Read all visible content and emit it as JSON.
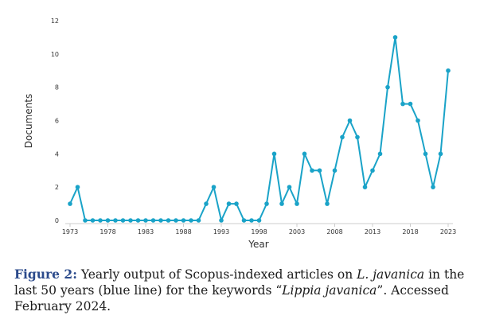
{
  "chart_data": {
    "type": "line",
    "xlabel": "Year",
    "ylabel": "Documents",
    "x": [
      1973,
      1974,
      1975,
      1976,
      1977,
      1978,
      1979,
      1980,
      1981,
      1982,
      1983,
      1984,
      1985,
      1986,
      1987,
      1988,
      1989,
      1990,
      1991,
      1992,
      1993,
      1994,
      1995,
      1996,
      1997,
      1998,
      1999,
      2000,
      2001,
      2002,
      2003,
      2004,
      2005,
      2006,
      2007,
      2008,
      2009,
      2010,
      2011,
      2012,
      2013,
      2014,
      2015,
      2016,
      2017,
      2018,
      2019,
      2020,
      2021,
      2022,
      2023
    ],
    "series": [
      {
        "values": [
          1,
          2,
          0,
          0,
          0,
          0,
          0,
          0,
          0,
          0,
          0,
          0,
          0,
          0,
          0,
          0,
          0,
          0,
          1,
          2,
          0,
          1,
          1,
          0,
          0,
          0,
          1,
          4,
          1,
          2,
          1,
          4,
          3,
          3,
          1,
          3,
          5,
          6,
          5,
          2,
          3,
          4,
          8,
          11,
          7,
          7,
          6,
          4,
          2,
          4,
          9
        ]
      }
    ],
    "xticks": [
      1973,
      1978,
      1983,
      1988,
      1993,
      1998,
      2003,
      2008,
      2013,
      2018,
      2023
    ],
    "yticks": [
      0,
      2,
      4,
      6,
      8,
      10,
      12
    ],
    "xlim": [
      1973,
      2023
    ],
    "ylim": [
      0,
      12
    ],
    "grid": false,
    "line_color": "#1aa3c8"
  },
  "caption": {
    "label": "Figure 2:",
    "text_1": " Yearly output of Scopus-indexed articles on ",
    "italic_1": "L. javanica",
    "text_2": " in the last 50 years (blue line) for the keywords “",
    "italic_2": "Lippia javanica",
    "text_3": "”. Accessed February 2024."
  }
}
